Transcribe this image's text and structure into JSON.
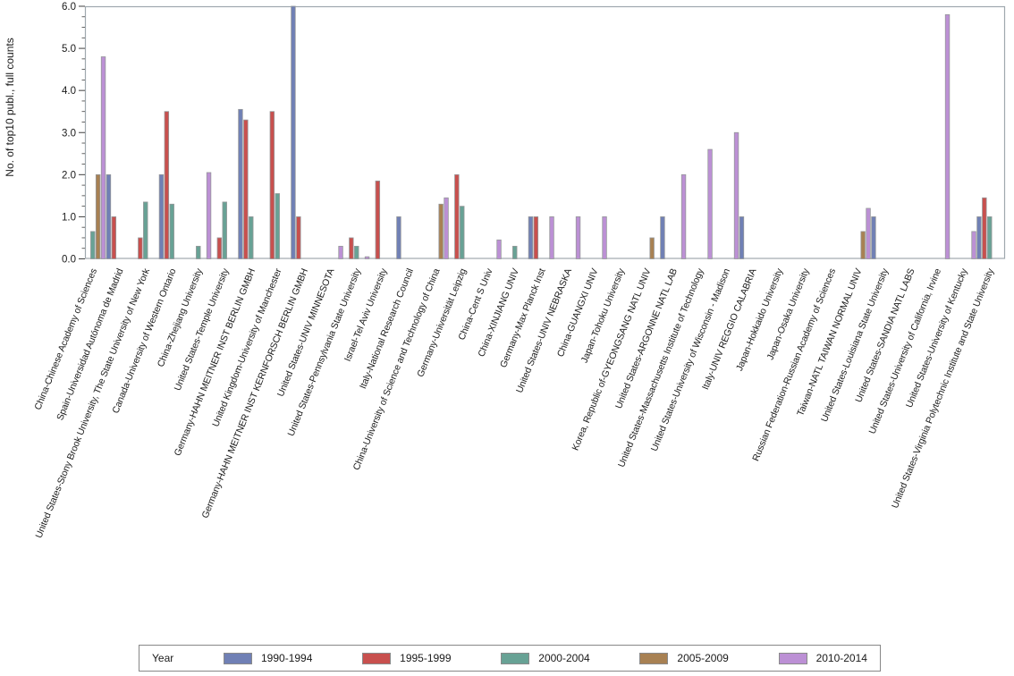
{
  "figure": {
    "background": "#ffffff",
    "plot_border_color": "#9fa8ae",
    "tick_color": "#3f3f3f",
    "text_color": "#1a1a1a",
    "bar_outline_color": "#96989a"
  },
  "chart_data": {
    "type": "bar",
    "title": "",
    "xlabel": "",
    "ylabel": "No. of top10 publ., full counts",
    "ylim": [
      0,
      6
    ],
    "ytick_step": 1.0,
    "ytick_labels": [
      "0.0",
      "1.0",
      "2.0",
      "3.0",
      "4.0",
      "5.0",
      "6.0"
    ],
    "minor_tick_step": 0.25,
    "grid": false,
    "legend_position": "bottom",
    "legend_title": "Year",
    "categories": [
      "China-Chinese Academy of Sciences",
      "Spain-Universidad Autónoma de Madrid",
      "United States-Stony Brook University, The State University of New York",
      "Canada-University of Western Ontario",
      "China-Zhejiang University",
      "United States-Temple University",
      "Germany-HAHN MEITNER INST BERLIN GMBH",
      "United Kingdom-University of Manchester",
      "Germany-HAHN MEITNER INST KERNFORSCH BERLIN GMBH",
      "United States-UNIV MINNESOTA",
      "United States-Pennsylvania State University",
      "Israel-Tel Aviv University",
      "Italy-National Research Council",
      "China-University of Science and Technology of China",
      "Germany-Universität Leipzig",
      "China-Cent S Univ",
      "China-XINJIANG UNIV",
      "Germany-Max Planck Inst",
      "United States-UNIV NEBRASKA",
      "China-GUANGXI UNIV",
      "Japan-Tohoku University",
      "Korea, Republic of-GYEONGSANG NATL UNIV",
      "United States-ARGONNE NATL LAB",
      "United States-Massachusetts Institute of Technology",
      "United States-University of Wisconsin - Madison",
      "Italy-UNIV REGGIO CALABRIA",
      "Japan-Hokkaido University",
      "Japan-Osaka University",
      "Russian Federation-Russian Academy of Sciences",
      "Taiwan-NATL TAIWAN NORMAL UNIV",
      "United States-Louisiana State University",
      "United States-SANDIA NATL LABS",
      "United States-University of California, Irvine",
      "United States-University of Kentucky",
      "United States-Virginia Polytechnic Institute and State University"
    ],
    "series": [
      {
        "name": "1990-1994",
        "color": "#7080b5",
        "values": [
          0,
          2.0,
          0,
          2.0,
          0,
          0,
          3.55,
          0,
          6.0,
          0,
          0,
          0,
          1.0,
          0,
          0,
          0,
          0,
          1.0,
          0,
          0,
          0,
          0,
          1.0,
          0,
          0,
          1.0,
          0,
          0,
          0,
          0,
          1.0,
          0,
          0,
          0,
          1.0
        ]
      },
      {
        "name": "1995-1999",
        "color": "#c8504e",
        "values": [
          0,
          1.0,
          0.5,
          3.5,
          0,
          0.5,
          3.3,
          3.5,
          1.0,
          0,
          0.5,
          1.85,
          0,
          0,
          2.0,
          0,
          0,
          1.0,
          0,
          0,
          0,
          0,
          0,
          0,
          0,
          0,
          0,
          0,
          0,
          0,
          0,
          0,
          0,
          0,
          1.45
        ]
      },
      {
        "name": "2000-2004",
        "color": "#68a295",
        "values": [
          0.65,
          0,
          1.35,
          1.3,
          0.3,
          1.35,
          1.0,
          1.55,
          0,
          0,
          0.3,
          0,
          0,
          0,
          1.25,
          0,
          0.3,
          0,
          0,
          0,
          0,
          0,
          0,
          0,
          0,
          0,
          0,
          0,
          0,
          0,
          0,
          0,
          0,
          0,
          1.0
        ]
      },
      {
        "name": "2005-2009",
        "color": "#a88153",
        "values": [
          2.0,
          0,
          0,
          0,
          0,
          0,
          0,
          0,
          0,
          0,
          0,
          0,
          0,
          1.3,
          0,
          0,
          0,
          0,
          0,
          0,
          0,
          0.5,
          0,
          0,
          0,
          0,
          0,
          0,
          0,
          0.65,
          0,
          0,
          0,
          0,
          0
        ]
      },
      {
        "name": "2010-2014",
        "color": "#bc90d5",
        "values": [
          4.8,
          0,
          0,
          0,
          2.05,
          0,
          0,
          0,
          0,
          0.3,
          0.05,
          0,
          0,
          1.45,
          0,
          0.45,
          0,
          1.0,
          1.0,
          1.0,
          0,
          0,
          2.0,
          2.6,
          3.0,
          0,
          0,
          0,
          0,
          1.2,
          0,
          0,
          5.8,
          0.65,
          0
        ]
      }
    ]
  }
}
